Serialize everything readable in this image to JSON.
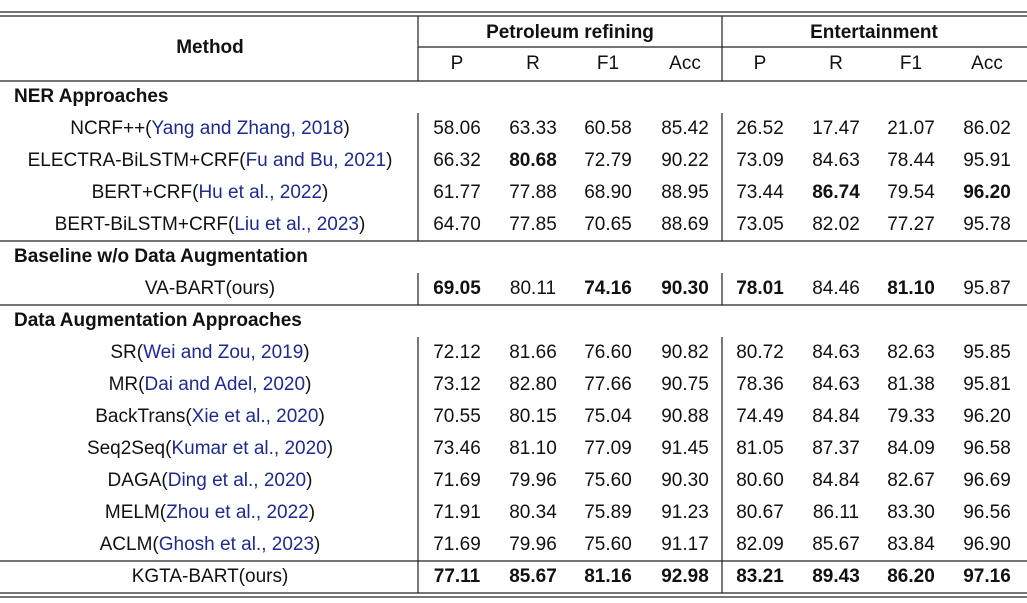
{
  "header": {
    "method": "Method",
    "groups": [
      "Petroleum refining",
      "Entertainment"
    ],
    "metrics": [
      "P",
      "R",
      "F1",
      "Acc",
      "P",
      "R",
      "F1",
      "Acc"
    ]
  },
  "sections": [
    {
      "title": "NER Approaches",
      "rows": [
        {
          "method": [
            "NCRF++(",
            "Yang and Zhang, 2018",
            ")"
          ],
          "values": [
            "58.06",
            "63.33",
            "60.58",
            "85.42",
            "26.52",
            "17.47",
            "21.07",
            "86.02"
          ],
          "bold": []
        },
        {
          "method": [
            "ELECTRA-BiLSTM+CRF(",
            "Fu and Bu, 2021",
            ")"
          ],
          "values": [
            "66.32",
            "80.68",
            "72.79",
            "90.22",
            "73.09",
            "84.63",
            "78.44",
            "95.91"
          ],
          "bold": [
            1
          ]
        },
        {
          "method": [
            "BERT+CRF(",
            "Hu et al., 2022",
            ")"
          ],
          "values": [
            "61.77",
            "77.88",
            "68.90",
            "88.95",
            "73.44",
            "86.74",
            "79.54",
            "96.20"
          ],
          "bold": [
            5,
            7
          ]
        },
        {
          "method": [
            "BERT-BiLSTM+CRF(",
            "Liu et al., 2023",
            ")"
          ],
          "values": [
            "64.70",
            "77.85",
            "70.65",
            "88.69",
            "73.05",
            "82.02",
            "77.27",
            "95.78"
          ],
          "bold": []
        }
      ]
    },
    {
      "title": "Baseline w/o Data Augmentation",
      "rows": [
        {
          "method": [
            "VA-BART(ours)"
          ],
          "values": [
            "69.05",
            "80.11",
            "74.16",
            "90.30",
            "78.01",
            "84.46",
            "81.10",
            "95.87"
          ],
          "bold": [
            0,
            2,
            3,
            4,
            6
          ]
        }
      ]
    },
    {
      "title": "Data Augmentation Approaches",
      "rows": [
        {
          "method": [
            "SR(",
            "Wei and Zou, 2019",
            ")"
          ],
          "values": [
            "72.12",
            "81.66",
            "76.60",
            "90.82",
            "80.72",
            "84.63",
            "82.63",
            "95.85"
          ],
          "bold": []
        },
        {
          "method": [
            "MR(",
            "Dai and Adel, 2020",
            ")"
          ],
          "values": [
            "73.12",
            "82.80",
            "77.66",
            "90.75",
            "78.36",
            "84.63",
            "81.38",
            "95.81"
          ],
          "bold": []
        },
        {
          "method": [
            "BackTrans(",
            "Xie et al., 2020",
            ")"
          ],
          "values": [
            "70.55",
            "80.15",
            "75.04",
            "90.88",
            "74.49",
            "84.84",
            "79.33",
            "96.20"
          ],
          "bold": []
        },
        {
          "method": [
            "Seq2Seq(",
            "Kumar et al., 2020",
            ")"
          ],
          "values": [
            "73.46",
            "81.10",
            "77.09",
            "91.45",
            "81.05",
            "87.37",
            "84.09",
            "96.58"
          ],
          "bold": []
        },
        {
          "method": [
            "DAGA(",
            "Ding et al., 2020",
            ")"
          ],
          "values": [
            "71.69",
            "79.96",
            "75.60",
            "90.30",
            "80.60",
            "84.84",
            "82.67",
            "96.69"
          ],
          "bold": []
        },
        {
          "method": [
            "MELM(",
            "Zhou et al., 2022",
            ")"
          ],
          "values": [
            "71.91",
            "80.34",
            "75.89",
            "91.23",
            "80.67",
            "86.11",
            "83.30",
            "96.56"
          ],
          "bold": []
        },
        {
          "method": [
            "ACLM(",
            "Ghosh et al., 2023",
            ")"
          ],
          "values": [
            "71.69",
            "79.96",
            "75.60",
            "91.17",
            "82.09",
            "85.67",
            "83.84",
            "96.90"
          ],
          "bold": []
        },
        {
          "method": [
            "KGTA-BART(ours)"
          ],
          "values": [
            "77.11",
            "85.67",
            "81.16",
            "92.98",
            "83.21",
            "89.43",
            "86.20",
            "97.16"
          ],
          "bold": [
            0,
            1,
            2,
            3,
            4,
            5,
            6,
            7
          ],
          "rule_above": true
        }
      ]
    }
  ]
}
